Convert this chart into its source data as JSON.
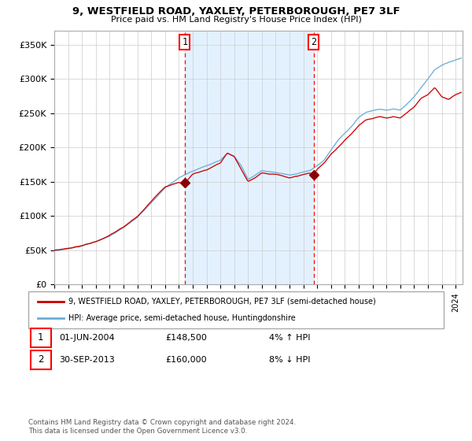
{
  "title": "9, WESTFIELD ROAD, YAXLEY, PETERBOROUGH, PE7 3LF",
  "subtitle": "Price paid vs. HM Land Registry's House Price Index (HPI)",
  "legend_line1": "9, WESTFIELD ROAD, YAXLEY, PETERBOROUGH, PE7 3LF (semi-detached house)",
  "legend_line2": "HPI: Average price, semi-detached house, Huntingdonshire",
  "footnote": "Contains HM Land Registry data © Crown copyright and database right 2024.\nThis data is licensed under the Open Government Licence v3.0.",
  "annotation1_label": "1",
  "annotation1_date": "01-JUN-2004",
  "annotation1_price": "£148,500",
  "annotation1_pct": "4% ↑ HPI",
  "annotation2_label": "2",
  "annotation2_date": "30-SEP-2013",
  "annotation2_price": "£160,000",
  "annotation2_pct": "8% ↓ HPI",
  "vline1_x": 2004.42,
  "vline2_x": 2013.75,
  "sale1_x": 2004.42,
  "sale1_y": 148500,
  "sale2_x": 2013.75,
  "sale2_y": 160000,
  "hpi_color": "#6baed6",
  "price_color": "#cc0000",
  "sale_marker_color": "#8b0000",
  "background_color": "#ffffff",
  "plot_bg_color": "#ffffff",
  "shading_color": "#ddeeff",
  "ylim": [
    0,
    370000
  ],
  "xlim": [
    1995,
    2024.5
  ],
  "yticks": [
    0,
    50000,
    100000,
    150000,
    200000,
    250000,
    300000,
    350000
  ],
  "ytick_labels": [
    "£0",
    "£50K",
    "£100K",
    "£150K",
    "£200K",
    "£250K",
    "£300K",
    "£350K"
  ],
  "xticks": [
    1995,
    1996,
    1997,
    1998,
    1999,
    2000,
    2001,
    2002,
    2003,
    2004,
    2005,
    2006,
    2007,
    2008,
    2009,
    2010,
    2011,
    2012,
    2013,
    2014,
    2015,
    2016,
    2017,
    2018,
    2019,
    2020,
    2021,
    2022,
    2023,
    2024
  ],
  "hpi_key_points": [
    [
      1995.0,
      49000
    ],
    [
      1996.0,
      52000
    ],
    [
      1997.0,
      56000
    ],
    [
      1998.0,
      62000
    ],
    [
      1999.0,
      70000
    ],
    [
      2000.0,
      82000
    ],
    [
      2001.0,
      97000
    ],
    [
      2002.0,
      118000
    ],
    [
      2003.0,
      140000
    ],
    [
      2004.0,
      155000
    ],
    [
      2004.5,
      160000
    ],
    [
      2005.0,
      165000
    ],
    [
      2006.0,
      172000
    ],
    [
      2007.0,
      180000
    ],
    [
      2007.5,
      190000
    ],
    [
      2008.0,
      185000
    ],
    [
      2008.5,
      172000
    ],
    [
      2009.0,
      152000
    ],
    [
      2009.5,
      158000
    ],
    [
      2010.0,
      165000
    ],
    [
      2010.5,
      163000
    ],
    [
      2011.0,
      162000
    ],
    [
      2011.5,
      160000
    ],
    [
      2012.0,
      158000
    ],
    [
      2012.5,
      160000
    ],
    [
      2013.0,
      163000
    ],
    [
      2013.5,
      165000
    ],
    [
      2014.0,
      172000
    ],
    [
      2014.5,
      180000
    ],
    [
      2015.0,
      195000
    ],
    [
      2015.5,
      210000
    ],
    [
      2016.0,
      220000
    ],
    [
      2016.5,
      230000
    ],
    [
      2017.0,
      243000
    ],
    [
      2017.5,
      250000
    ],
    [
      2018.0,
      253000
    ],
    [
      2018.5,
      255000
    ],
    [
      2019.0,
      253000
    ],
    [
      2019.5,
      255000
    ],
    [
      2020.0,
      253000
    ],
    [
      2020.5,
      262000
    ],
    [
      2021.0,
      272000
    ],
    [
      2021.5,
      285000
    ],
    [
      2022.0,
      298000
    ],
    [
      2022.5,
      312000
    ],
    [
      2023.0,
      318000
    ],
    [
      2023.5,
      322000
    ],
    [
      2024.0,
      325000
    ],
    [
      2024.4,
      328000
    ]
  ],
  "prop_key_points": [
    [
      1995.0,
      50000
    ],
    [
      1996.0,
      53000
    ],
    [
      1997.0,
      57000
    ],
    [
      1998.0,
      63000
    ],
    [
      1999.0,
      72000
    ],
    [
      2000.0,
      84000
    ],
    [
      2001.0,
      99000
    ],
    [
      2002.0,
      121000
    ],
    [
      2003.0,
      143000
    ],
    [
      2004.0,
      150000
    ],
    [
      2004.42,
      148500
    ],
    [
      2005.0,
      162000
    ],
    [
      2006.0,
      168000
    ],
    [
      2007.0,
      178000
    ],
    [
      2007.5,
      192000
    ],
    [
      2008.0,
      187000
    ],
    [
      2008.5,
      168000
    ],
    [
      2009.0,
      150000
    ],
    [
      2009.5,
      155000
    ],
    [
      2010.0,
      162000
    ],
    [
      2010.5,
      160000
    ],
    [
      2011.0,
      160000
    ],
    [
      2011.5,
      158000
    ],
    [
      2012.0,
      155000
    ],
    [
      2012.5,
      157000
    ],
    [
      2013.0,
      160000
    ],
    [
      2013.5,
      162000
    ],
    [
      2013.75,
      160000
    ],
    [
      2014.0,
      168000
    ],
    [
      2014.5,
      177000
    ],
    [
      2015.0,
      190000
    ],
    [
      2015.5,
      200000
    ],
    [
      2016.0,
      210000
    ],
    [
      2016.5,
      220000
    ],
    [
      2017.0,
      232000
    ],
    [
      2017.5,
      240000
    ],
    [
      2018.0,
      242000
    ],
    [
      2018.5,
      245000
    ],
    [
      2019.0,
      243000
    ],
    [
      2019.5,
      245000
    ],
    [
      2020.0,
      243000
    ],
    [
      2020.5,
      250000
    ],
    [
      2021.0,
      258000
    ],
    [
      2021.5,
      270000
    ],
    [
      2022.0,
      275000
    ],
    [
      2022.5,
      285000
    ],
    [
      2023.0,
      272000
    ],
    [
      2023.5,
      268000
    ],
    [
      2024.0,
      275000
    ],
    [
      2024.4,
      278000
    ]
  ]
}
